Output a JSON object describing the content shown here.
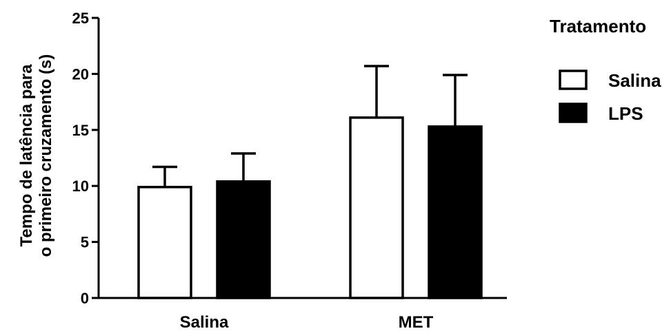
{
  "chart_data": {
    "type": "bar",
    "categories": [
      "Salina",
      "MET"
    ],
    "series": [
      {
        "name": "Salina",
        "values": [
          9.9,
          16.1
        ],
        "errors": [
          1.8,
          4.6
        ],
        "fill": "#ffffff"
      },
      {
        "name": "LPS",
        "values": [
          10.4,
          15.3
        ],
        "errors": [
          2.5,
          4.6
        ],
        "fill": "#000000"
      }
    ],
    "ylabel_lines": [
      "Tempo de latência para",
      "o primeiro cruzamento (s)"
    ],
    "xlabel": "",
    "ylim": [
      0,
      25
    ],
    "yticks": [
      0,
      5,
      10,
      15,
      20,
      25
    ],
    "legend": {
      "title": "Tratamento",
      "position": "top-right"
    },
    "grid": false
  }
}
